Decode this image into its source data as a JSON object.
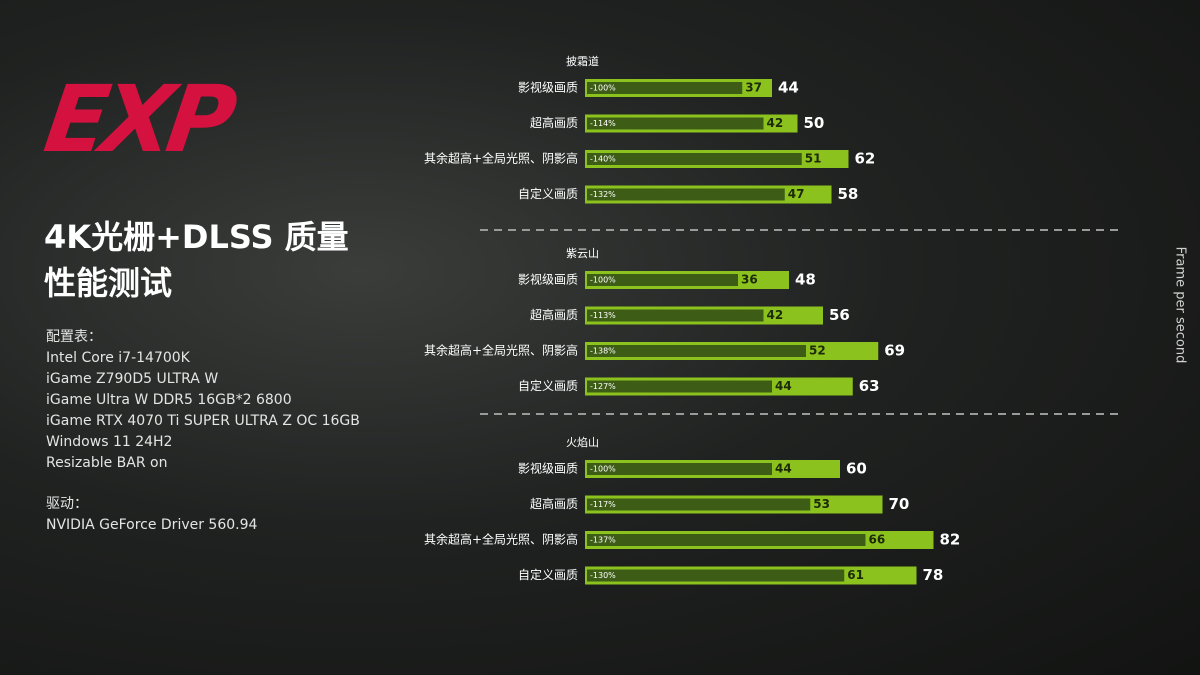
{
  "logo": "EXP",
  "title": [
    "4K光栅+DLSS 质量",
    "性能测试"
  ],
  "config_heading": "配置表：",
  "config": [
    "Intel Core i7-14700K",
    "iGame Z790D5 ULTRA W",
    "iGame Ultra W DDR5 16GB*2 6800",
    "iGame RTX 4070 Ti SUPER ULTRA Z OC 16GB",
    "Windows 11 24H2",
    "Resizable BAR on"
  ],
  "driver_heading": "驱动：",
  "driver": "NVIDIA GeForce Driver 560.94",
  "value_axis_label": "Frame per second",
  "chart_data": [
    {
      "type": "bar",
      "title": "披霜道",
      "categories": [
        "影视级画质",
        "超高画质",
        "其余超高+全局光照、阴影高",
        "自定义画质"
      ],
      "annotations": [
        "-100%",
        "-114%",
        "-140%",
        "-132%"
      ],
      "series": [
        {
          "color": "#3d5c16",
          "values": [
            37,
            42,
            51,
            47
          ]
        },
        {
          "color": "#8cc21e",
          "values": [
            44,
            50,
            62,
            58
          ]
        }
      ]
    },
    {
      "type": "bar",
      "title": "紫云山",
      "categories": [
        "影视级画质",
        "超高画质",
        "其余超高+全局光照、阴影高",
        "自定义画质"
      ],
      "annotations": [
        "-100%",
        "-113%",
        "-138%",
        "-127%"
      ],
      "series": [
        {
          "color": "#3d5c16",
          "values": [
            36,
            42,
            52,
            44
          ]
        },
        {
          "color": "#8cc21e",
          "values": [
            48,
            56,
            69,
            63
          ]
        }
      ]
    },
    {
      "type": "bar",
      "title": "火焰山",
      "categories": [
        "影视级画质",
        "超高画质",
        "其余超高+全局光照、阴影高",
        "自定义画质"
      ],
      "annotations": [
        "-100%",
        "-117%",
        "-137%",
        "-130%"
      ],
      "series": [
        {
          "color": "#3d5c16",
          "values": [
            44,
            53,
            66,
            61
          ]
        },
        {
          "color": "#8cc21e",
          "values": [
            60,
            70,
            82,
            78
          ]
        }
      ]
    }
  ]
}
